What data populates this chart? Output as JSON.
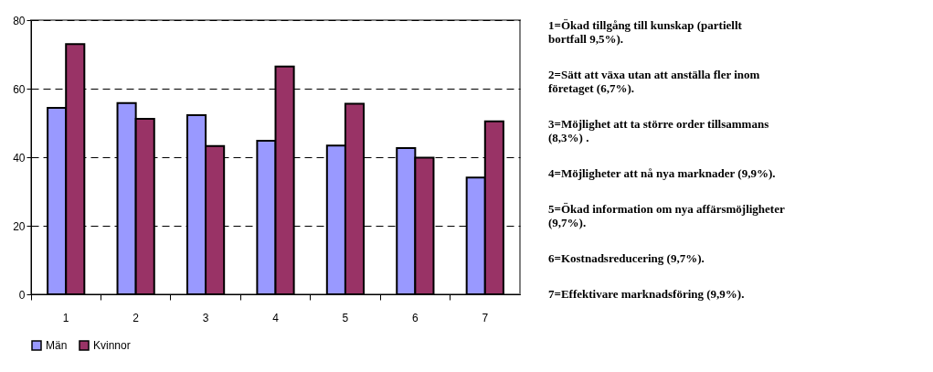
{
  "chart_data": {
    "type": "bar",
    "categories": [
      "1",
      "2",
      "3",
      "4",
      "5",
      "6",
      "7"
    ],
    "series": [
      {
        "name": "Män",
        "color": "#9999ff",
        "values": [
          54.4,
          55.8,
          52.3,
          44.8,
          43.4,
          42.7,
          34.1
        ]
      },
      {
        "name": "Kvinnor",
        "color": "#993366",
        "values": [
          73.0,
          51.2,
          43.3,
          66.5,
          55.6,
          39.9,
          50.5
        ]
      }
    ],
    "ylim": [
      0,
      80
    ],
    "yticks": [
      0,
      20,
      40,
      60,
      80
    ],
    "grid": "y",
    "legend": "bottom",
    "annotations": [
      "1=Ökad tillgång till kunskap (partiellt bortfall 9,5%).",
      "2=Sätt att växa utan att anställa fler inom företaget (6,7%).",
      "3=Möjlighet att ta större order tillsammans (8,3%) .",
      "4=Möjligheter att nå nya marknader (9,9%).",
      "5=Ökad information om nya affärsmöjligheter (9,7%).",
      "6=Kostnadsreducering (9,7%).",
      "7=Effektivare marknadsföring (9,9%)."
    ]
  }
}
